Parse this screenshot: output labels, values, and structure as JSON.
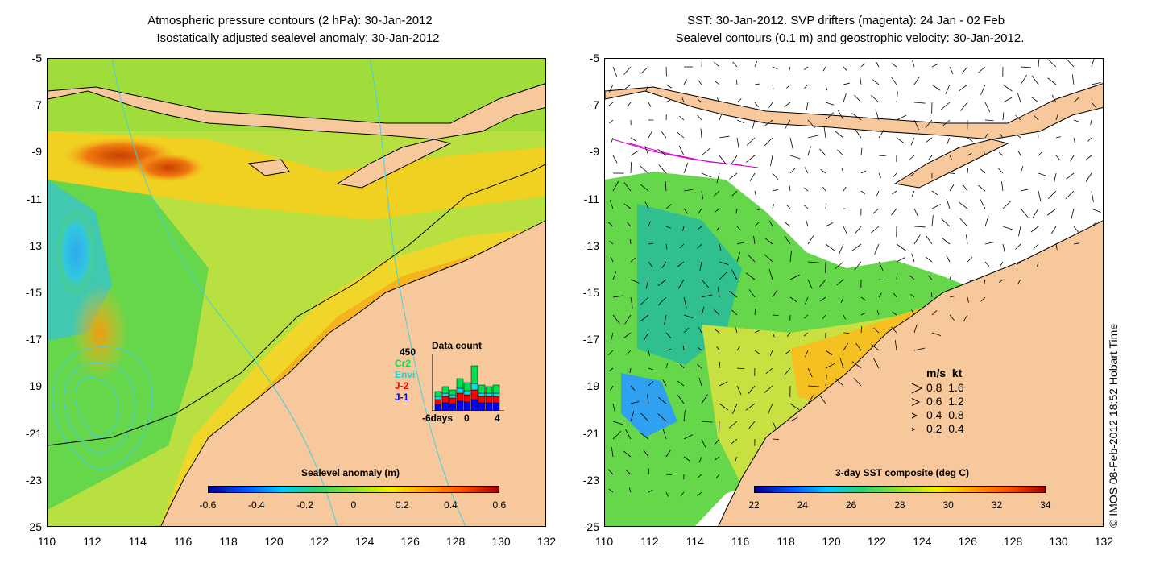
{
  "left_panel": {
    "title_line1": "Atmospheric pressure contours (2 hPa): 30-Jan-2012",
    "title_line2": "Isostatically adjusted sealevel anomaly: 30-Jan-2012",
    "colorbar_title": "Sealevel anomaly (m)",
    "colorbar_labels": [
      "-0.6",
      "-0.4",
      "-0.2",
      "0",
      "0.2",
      "0.4",
      "0.6"
    ],
    "colorbar_colors": [
      "#00008c",
      "#0050ff",
      "#00c8ff",
      "#30d070",
      "#90e030",
      "#f0f000",
      "#ffa000",
      "#ff5000",
      "#a00000"
    ],
    "data_count": {
      "title": "Data count",
      "max_label": "450",
      "missions": [
        {
          "name": "Cr2",
          "color": "#00e050"
        },
        {
          "name": "Envi",
          "color": "#00e0e0"
        },
        {
          "name": "J-2",
          "color": "#ff0000"
        },
        {
          "name": "J-1",
          "color": "#0000ff"
        }
      ],
      "x_labels": [
        "-6days",
        "0",
        "4"
      ]
    }
  },
  "right_panel": {
    "title_line1": "SST: 30-Jan-2012. SVP drifters (magenta): 24 Jan - 02 Feb",
    "title_line2": "Sealevel contours (0.1 m) and geostrophic velocity: 30-Jan-2012.",
    "colorbar_title": "3-day SST composite (deg C)",
    "colorbar_labels": [
      "22",
      "24",
      "26",
      "28",
      "30",
      "32",
      "34"
    ],
    "colorbar_colors": [
      "#00008c",
      "#0050ff",
      "#00c8ff",
      "#30d070",
      "#90e030",
      "#f0f000",
      "#ffa000",
      "#ff5000",
      "#a00000"
    ],
    "velocity_legend": {
      "header": "m/s  kt",
      "rows": [
        "0.8  1.6",
        "0.6  1.2",
        "0.4  0.8",
        "0.2  0.4"
      ]
    }
  },
  "axes": {
    "x_ticks": [
      "110",
      "112",
      "114",
      "116",
      "118",
      "120",
      "122",
      "124",
      "126",
      "128",
      "130",
      "132"
    ],
    "y_ticks": [
      "-5",
      "-7",
      "-9",
      "-11",
      "-13",
      "-15",
      "-17",
      "-19",
      "-21",
      "-23",
      "-25"
    ]
  },
  "colors": {
    "land": "#f7c89b",
    "ocean_green": "#66d64a",
    "ocean_yellow": "#d6e84a",
    "ocean_orange": "#f5b41e",
    "ocean_cyan": "#30c8e0",
    "cloud_white": "#ffffff"
  },
  "copyright": "© IMOS 08-Feb-2012 18:52 Hobart Time"
}
